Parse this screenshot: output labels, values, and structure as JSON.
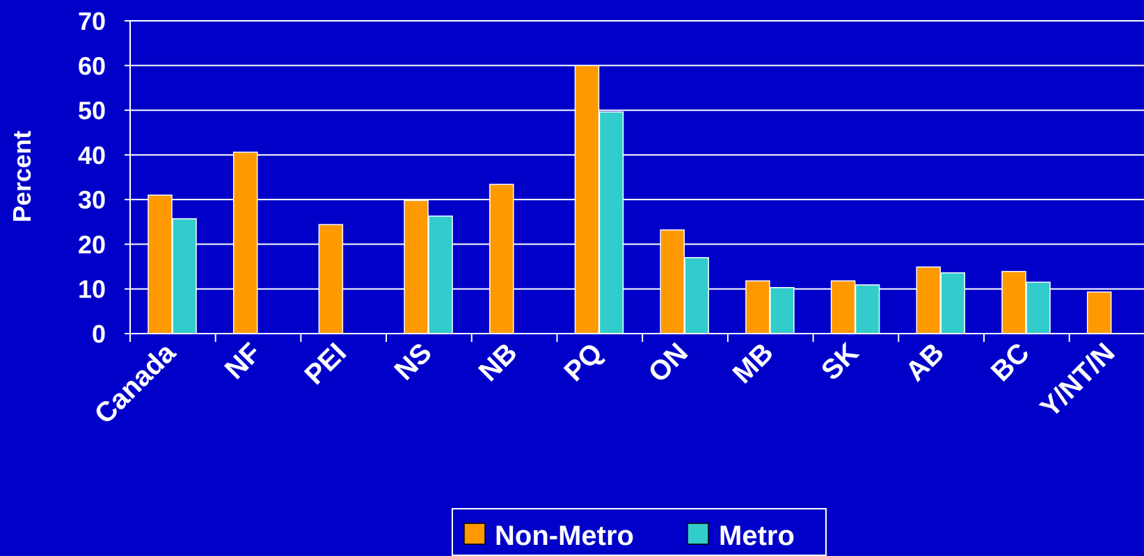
{
  "colors": {
    "background": "#0000c8",
    "non_metro": "#ff9900",
    "metro": "#33cccc",
    "grid": "#ffffff",
    "text": "#ffffff"
  },
  "chart_data": {
    "type": "bar",
    "title": "",
    "xlabel": "",
    "ylabel": "Percent",
    "ylim": [
      0,
      70
    ],
    "yticks": [
      0,
      10,
      20,
      30,
      40,
      50,
      60,
      70
    ],
    "grid": true,
    "legend_position": "bottom",
    "categories": [
      "Canada",
      "NF",
      "PEI",
      "NS",
      "NB",
      "PQ",
      "ON",
      "MB",
      "SK",
      "AB",
      "BC",
      "Y/NT/N"
    ],
    "series": [
      {
        "name": "Non-Metro",
        "color": "#ff9900",
        "values": [
          31,
          40.6,
          24.4,
          29.8,
          33.4,
          60,
          23.2,
          11.8,
          11.8,
          14.9,
          13.9,
          9.3
        ]
      },
      {
        "name": "Metro",
        "color": "#33cccc",
        "values": [
          25.7,
          null,
          null,
          26.3,
          null,
          49.6,
          17,
          10.3,
          10.9,
          13.6,
          11.5,
          null
        ]
      }
    ]
  }
}
